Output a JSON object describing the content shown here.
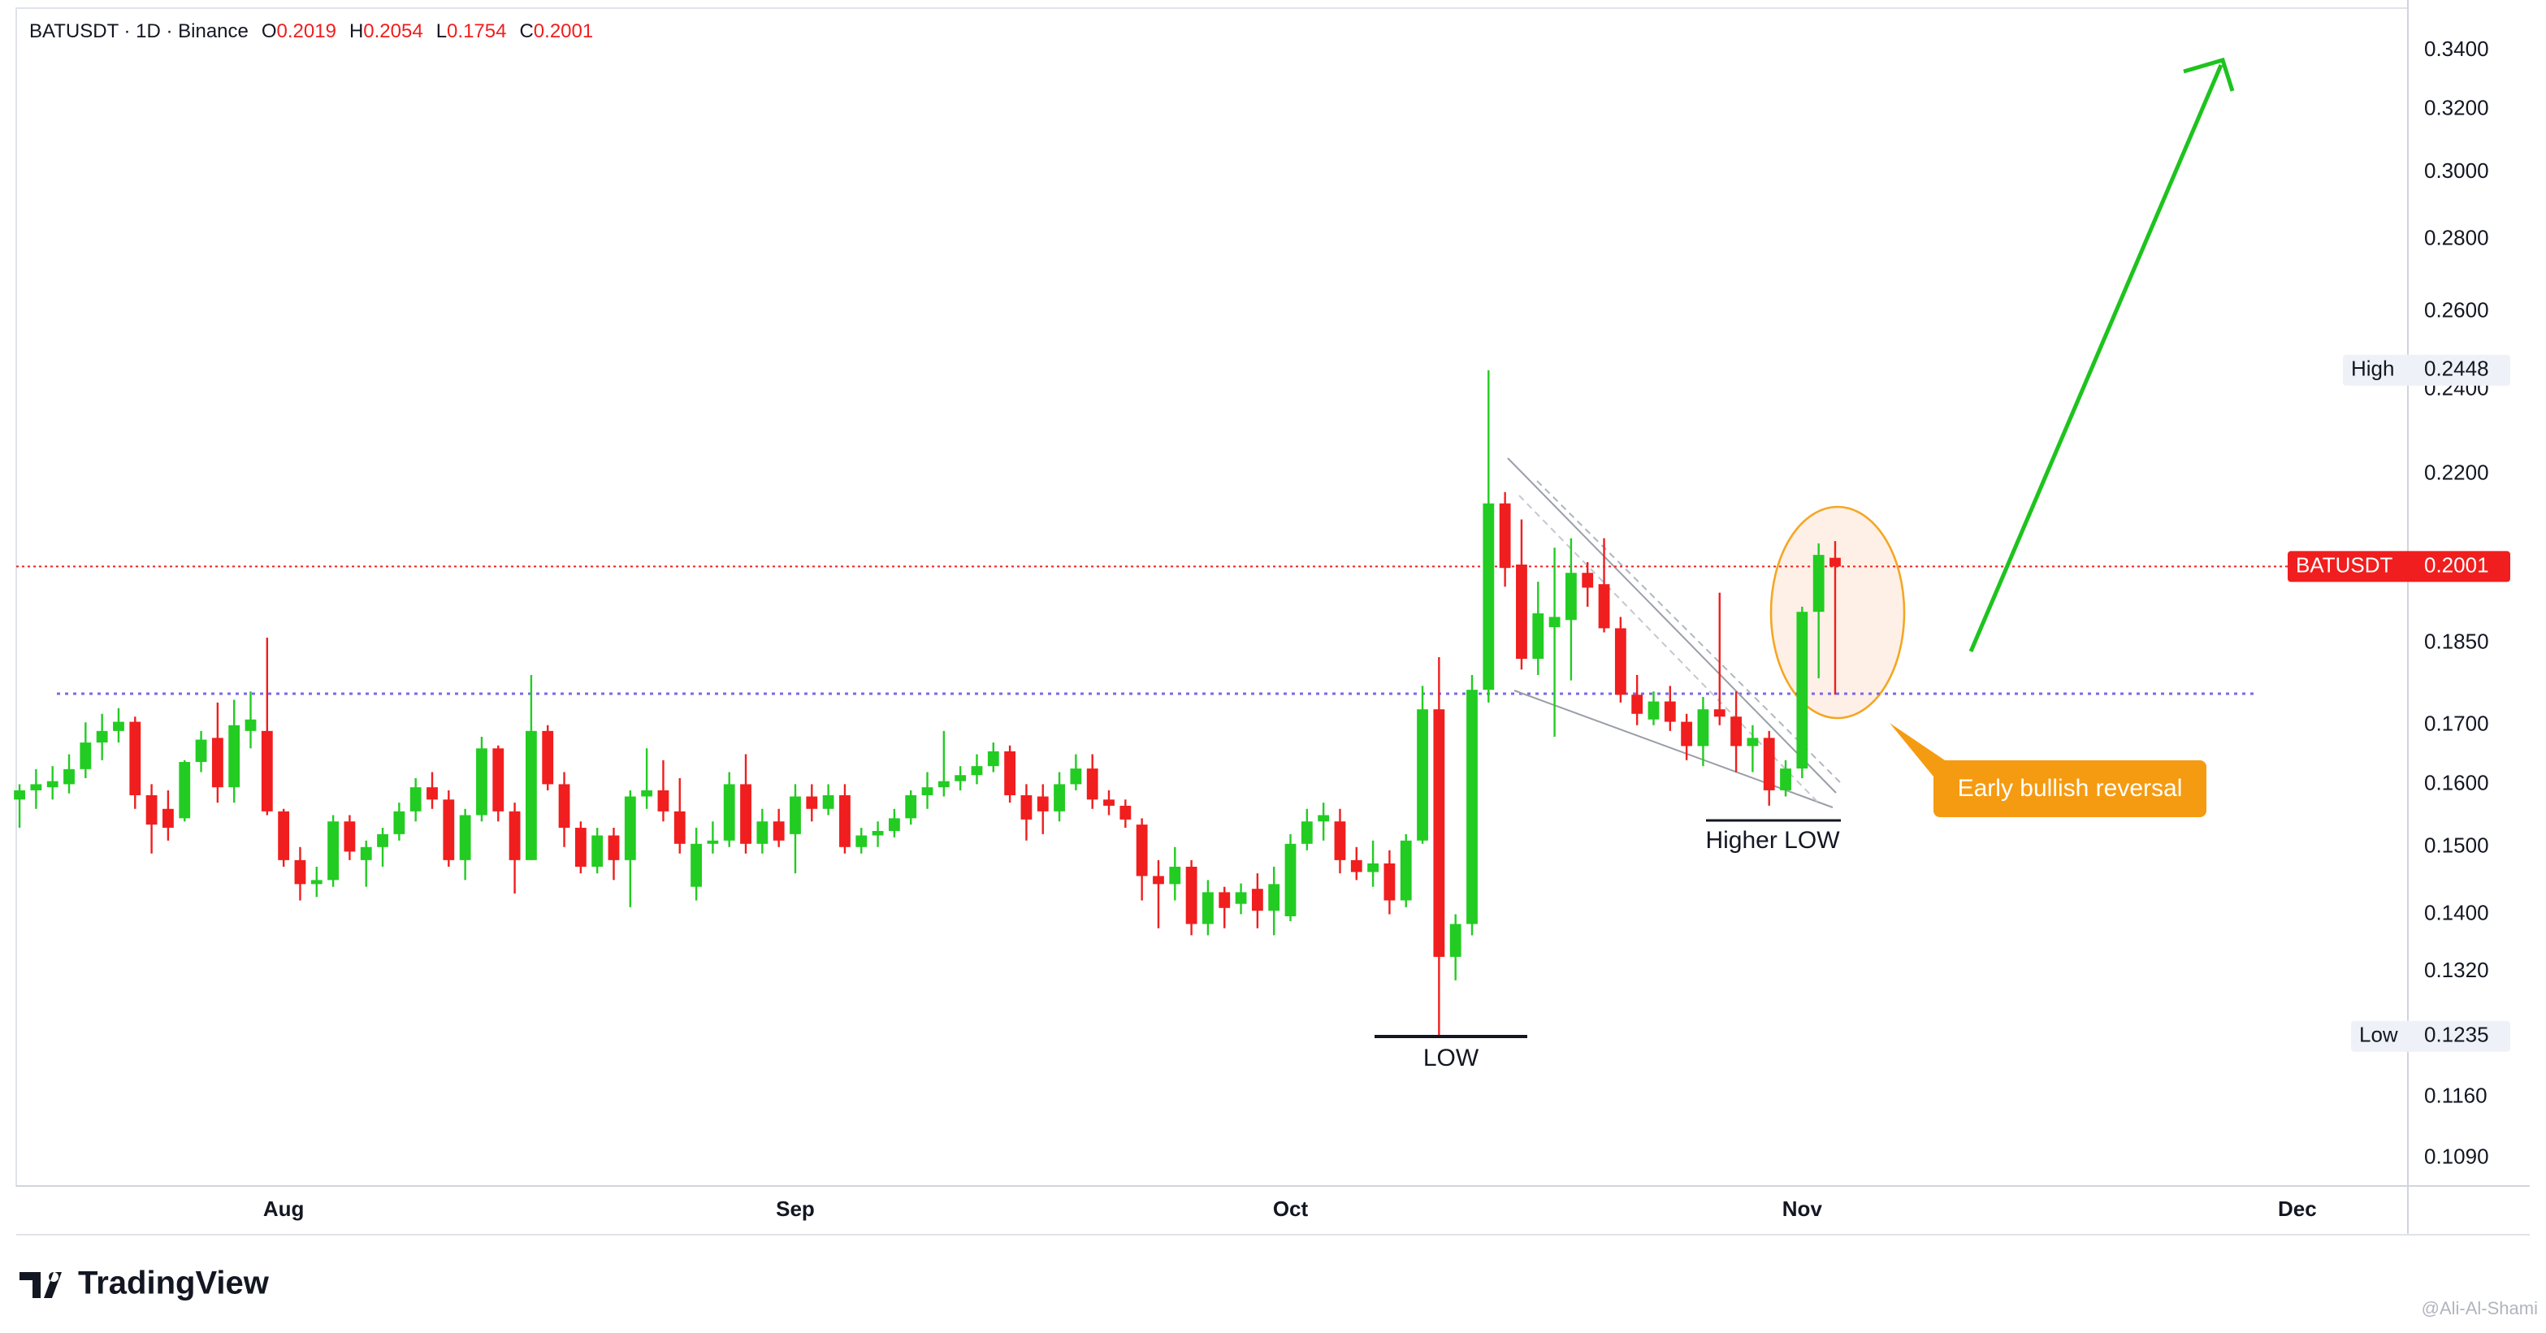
{
  "chart_data": {
    "type": "candlestick",
    "title": "BATUSDT · 1D · Binance",
    "ohlc_labels": [
      "O",
      "H",
      "L",
      "C"
    ],
    "high_label": "High",
    "low_label": "Low",
    "price_label": "BATUSDT",
    "annotations": [
      "LOW",
      "Higher LOW",
      "Early bullish reversal"
    ],
    "up_color": "#22cc22",
    "down_color": "#f01e1e",
    "log_scale": true,
    "grid": false,
    "xlim": [
      -0.2,
      144.7
    ],
    "xticks": [
      {
        "value": 16,
        "label": "Aug"
      },
      {
        "value": 47,
        "label": "Sep"
      },
      {
        "value": 77,
        "label": "Oct"
      },
      {
        "value": 108,
        "label": "Nov"
      },
      {
        "value": 138,
        "label": "Dec"
      }
    ],
    "ylim": [
      0.1059,
      0.3551
    ],
    "yticks": [
      {
        "value": 0.109,
        "label": "0.1090"
      },
      {
        "value": 0.116,
        "label": "0.1160"
      },
      {
        "value": 0.132,
        "label": "0.1320"
      },
      {
        "value": 0.14,
        "label": "0.1400"
      },
      {
        "value": 0.15,
        "label": "0.1500"
      },
      {
        "value": 0.16,
        "label": "0.1600"
      },
      {
        "value": 0.17,
        "label": "0.1700"
      },
      {
        "value": 0.185,
        "label": "0.1850"
      },
      {
        "value": 0.22,
        "label": "0.2200"
      },
      {
        "value": 0.24,
        "label": "0.2400"
      },
      {
        "value": 0.26,
        "label": "0.2600"
      },
      {
        "value": 0.28,
        "label": "0.2800"
      },
      {
        "value": 0.3,
        "label": "0.3000"
      },
      {
        "value": 0.32,
        "label": "0.3200"
      },
      {
        "value": 0.34,
        "label": "0.3400"
      }
    ],
    "open": [
      0.1575,
      0.159,
      0.1595,
      0.16,
      0.1625,
      0.167,
      0.169,
      0.1706,
      0.1582,
      0.156,
      0.1545,
      0.1637,
      0.1678,
      0.1595,
      0.169,
      0.169,
      0.1556,
      0.148,
      0.1444,
      0.145,
      0.154,
      0.148,
      0.15,
      0.152,
      0.1556,
      0.1595,
      0.1575,
      0.148,
      0.155,
      0.166,
      0.1556,
      0.148,
      0.169,
      0.16,
      0.153,
      0.147,
      0.1518,
      0.148,
      0.158,
      0.159,
      0.1556,
      0.144,
      0.1505,
      0.151,
      0.16,
      0.1505,
      0.154,
      0.152,
      0.158,
      0.156,
      0.1582,
      0.15,
      0.1518,
      0.1525,
      0.1545,
      0.1582,
      0.1595,
      0.1605,
      0.1615,
      0.163,
      0.1655,
      0.1582,
      0.158,
      0.1556,
      0.16,
      0.1626,
      0.1575,
      0.1565,
      0.1535,
      0.1456,
      0.1444,
      0.147,
      0.1386,
      0.1432,
      0.1415,
      0.1437,
      0.1405,
      0.1397,
      0.1505,
      0.154,
      0.154,
      0.148,
      0.1462,
      0.1475,
      0.142,
      0.151,
      0.1728,
      0.134,
      0.1386,
      0.1763,
      0.2135,
      0.2005,
      0.182,
      0.188,
      0.1894,
      0.1988,
      0.1965,
      0.1878,
      0.1754,
      0.171,
      0.1742,
      0.1706,
      0.1664,
      0.1728,
      0.1715,
      0.1664,
      0.1678,
      0.159,
      0.1626,
      0.191,
      0.2019
    ],
    "high": [
      0.16,
      0.1625,
      0.163,
      0.165,
      0.1705,
      0.172,
      0.173,
      0.1715,
      0.16,
      0.159,
      0.164,
      0.169,
      0.174,
      0.1745,
      0.176,
      0.186,
      0.156,
      0.15,
      0.147,
      0.155,
      0.155,
      0.151,
      0.153,
      0.157,
      0.161,
      0.162,
      0.159,
      0.156,
      0.168,
      0.1665,
      0.157,
      0.179,
      0.17,
      0.162,
      0.154,
      0.153,
      0.153,
      0.159,
      0.166,
      0.164,
      0.161,
      0.153,
      0.154,
      0.162,
      0.165,
      0.156,
      0.156,
      0.16,
      0.16,
      0.16,
      0.16,
      0.153,
      0.154,
      0.156,
      0.159,
      0.162,
      0.169,
      0.163,
      0.165,
      0.167,
      0.1665,
      0.16,
      0.16,
      0.162,
      0.165,
      0.165,
      0.159,
      0.1575,
      0.1545,
      0.148,
      0.15,
      0.148,
      0.145,
      0.144,
      0.1445,
      0.146,
      0.147,
      0.152,
      0.156,
      0.157,
      0.156,
      0.15,
      0.151,
      0.1495,
      0.152,
      0.177,
      0.1823,
      0.14,
      0.179,
      0.2448,
      0.216,
      0.21,
      0.197,
      0.204,
      0.206,
      0.201,
      0.206,
      0.19,
      0.179,
      0.176,
      0.177,
      0.172,
      0.175,
      0.1948,
      0.176,
      0.17,
      0.169,
      0.164,
      0.192,
      0.2049,
      0.2054
    ],
    "low": [
      0.153,
      0.156,
      0.1575,
      0.1585,
      0.161,
      0.164,
      0.167,
      0.156,
      0.149,
      0.151,
      0.154,
      0.162,
      0.157,
      0.157,
      0.166,
      0.155,
      0.147,
      0.142,
      0.1425,
      0.144,
      0.148,
      0.144,
      0.147,
      0.151,
      0.154,
      0.156,
      0.147,
      0.145,
      0.154,
      0.154,
      0.143,
      0.148,
      0.159,
      0.15,
      0.146,
      0.146,
      0.145,
      0.141,
      0.156,
      0.154,
      0.149,
      0.142,
      0.149,
      0.15,
      0.149,
      0.149,
      0.15,
      0.146,
      0.154,
      0.155,
      0.149,
      0.149,
      0.15,
      0.1515,
      0.1535,
      0.156,
      0.158,
      0.159,
      0.16,
      0.162,
      0.157,
      0.151,
      0.152,
      0.154,
      0.159,
      0.156,
      0.155,
      0.153,
      0.142,
      0.138,
      0.142,
      0.137,
      0.137,
      0.138,
      0.14,
      0.138,
      0.137,
      0.139,
      0.1495,
      0.151,
      0.146,
      0.145,
      0.144,
      0.14,
      0.141,
      0.1505,
      0.1235,
      0.1308,
      0.137,
      0.174,
      0.196,
      0.18,
      0.179,
      0.168,
      0.178,
      0.192,
      0.187,
      0.174,
      0.17,
      0.17,
      0.169,
      0.164,
      0.163,
      0.17,
      0.162,
      0.162,
      0.1565,
      0.158,
      0.161,
      0.1784,
      0.1754
    ],
    "close": [
      0.159,
      0.16,
      0.1605,
      0.1625,
      0.167,
      0.169,
      0.1706,
      0.1582,
      0.1535,
      0.153,
      0.1637,
      0.1675,
      0.1595,
      0.17,
      0.171,
      0.1556,
      0.148,
      0.1444,
      0.145,
      0.154,
      0.1493,
      0.15,
      0.152,
      0.1556,
      0.1595,
      0.1575,
      0.148,
      0.155,
      0.166,
      0.1556,
      0.148,
      0.169,
      0.16,
      0.153,
      0.147,
      0.1518,
      0.148,
      0.158,
      0.159,
      0.1556,
      0.1505,
      0.1505,
      0.151,
      0.16,
      0.1505,
      0.154,
      0.151,
      0.158,
      0.156,
      0.1582,
      0.15,
      0.1518,
      0.1525,
      0.1545,
      0.1582,
      0.1595,
      0.1605,
      0.1615,
      0.163,
      0.1655,
      0.1582,
      0.1543,
      0.1556,
      0.16,
      0.1626,
      0.1575,
      0.1565,
      0.1543,
      0.1456,
      0.1444,
      0.147,
      0.1386,
      0.1432,
      0.1409,
      0.1432,
      0.1405,
      0.1444,
      0.1505,
      0.154,
      0.155,
      0.148,
      0.1462,
      0.1475,
      0.142,
      0.151,
      0.1728,
      0.134,
      0.1386,
      0.1763,
      0.2135,
      0.1998,
      0.182,
      0.1907,
      0.19,
      0.1988,
      0.1958,
      0.1878,
      0.1754,
      0.172,
      0.1742,
      0.1706,
      0.1664,
      0.1728,
      0.1715,
      0.1664,
      0.1678,
      0.159,
      0.1626,
      0.191,
      0.2025,
      0.2001
    ]
  },
  "footer": {
    "brand": "TradingView",
    "watermark": "@Ali-Al-Shami"
  }
}
